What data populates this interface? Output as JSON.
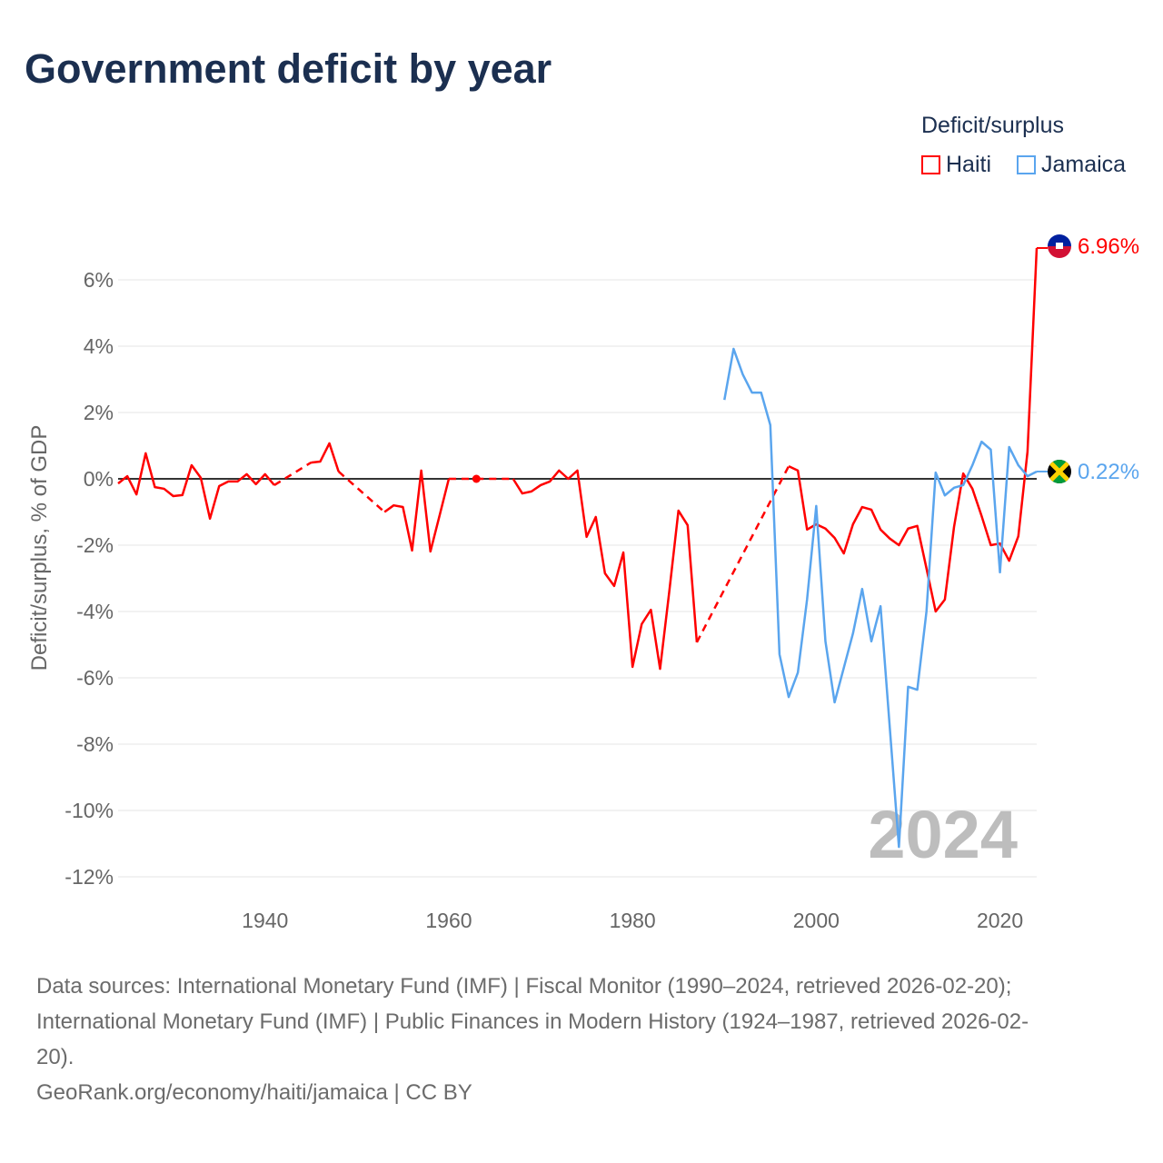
{
  "title": "Government deficit by year",
  "legend": {
    "title": "Deficit/surplus",
    "items": [
      {
        "name": "Haiti",
        "color": "#ff0000"
      },
      {
        "name": "Jamaica",
        "color": "#5aa5ee"
      }
    ]
  },
  "watermark_year": "2024",
  "footer": {
    "lines": [
      "Data sources: International Monetary Fund (IMF) | Fiscal Monitor (1990–2024, retrieved 2026-02-20);",
      "International Monetary Fund (IMF) | Public Finances in Modern History (1924–1987, retrieved 2026-02-",
      "20).",
      "GeoRank.org/economy/haiti/jamaica | CC BY"
    ]
  },
  "chart_data": {
    "type": "line",
    "title": "Government deficit by year",
    "xlabel": "",
    "ylabel": "Deficit/surplus, % of GDP",
    "xlim": [
      1924,
      2024
    ],
    "ylim": [
      -12.5,
      7
    ],
    "x_ticks": [
      1940,
      1960,
      1980,
      2000,
      2020
    ],
    "y_ticks": [
      6,
      4,
      2,
      0,
      -2,
      -4,
      -6,
      -8,
      -10,
      -12
    ],
    "y_tick_labels": [
      "6%",
      "4%",
      "2%",
      "0%",
      "-2%",
      "-4%",
      "-6%",
      "-8%",
      "-10%",
      "-12%"
    ],
    "grid": true,
    "legend_position": "top-right",
    "series": [
      {
        "name": "Haiti",
        "color": "#ff0000",
        "end_label": "6.96%",
        "points": [
          [
            1924,
            -0.14
          ],
          [
            1925,
            0.08
          ],
          [
            1926,
            -0.47
          ],
          [
            1927,
            0.77
          ],
          [
            1928,
            -0.25
          ],
          [
            1929,
            -0.3
          ],
          [
            1930,
            -0.52
          ],
          [
            1931,
            -0.49
          ],
          [
            1932,
            0.41
          ],
          [
            1933,
            0.03
          ],
          [
            1934,
            -1.2
          ],
          [
            1935,
            -0.22
          ],
          [
            1936,
            -0.08
          ],
          [
            1937,
            -0.08
          ],
          [
            1938,
            0.14
          ],
          [
            1939,
            -0.16
          ],
          [
            1940,
            0.14
          ],
          [
            1941,
            -0.19
          ],
          [
            1945,
            0.49
          ],
          [
            1946,
            0.52
          ],
          [
            1947,
            1.07
          ],
          [
            1948,
            0.22
          ],
          [
            1953,
            -1.0
          ],
          [
            1954,
            -0.8
          ],
          [
            1955,
            -0.85
          ],
          [
            1956,
            -2.16
          ],
          [
            1957,
            0.25
          ],
          [
            1958,
            -2.19
          ],
          [
            1959,
            -1.1
          ],
          [
            1960,
            0.0
          ],
          [
            1963,
            0.0
          ],
          [
            1967,
            0.0
          ],
          [
            1968,
            -0.44
          ],
          [
            1969,
            -0.38
          ],
          [
            1970,
            -0.19
          ],
          [
            1971,
            -0.08
          ],
          [
            1972,
            0.25
          ],
          [
            1973,
            0.0
          ],
          [
            1974,
            0.25
          ],
          [
            1975,
            -1.75
          ],
          [
            1976,
            -1.15
          ],
          [
            1977,
            -2.85
          ],
          [
            1978,
            -3.23
          ],
          [
            1979,
            -2.22
          ],
          [
            1980,
            -5.67
          ],
          [
            1981,
            -4.38
          ],
          [
            1982,
            -3.95
          ],
          [
            1983,
            -5.73
          ],
          [
            1984,
            -3.4
          ],
          [
            1985,
            -0.96
          ],
          [
            1986,
            -1.4
          ],
          [
            1987,
            -4.93
          ],
          [
            1997,
            0.38
          ],
          [
            1998,
            0.25
          ],
          [
            1999,
            -1.53
          ],
          [
            2000,
            -1.37
          ],
          [
            2001,
            -1.5
          ],
          [
            2002,
            -1.78
          ],
          [
            2003,
            -2.25
          ],
          [
            2004,
            -1.37
          ],
          [
            2005,
            -0.85
          ],
          [
            2006,
            -0.93
          ],
          [
            2007,
            -1.53
          ],
          [
            2008,
            -1.8
          ],
          [
            2009,
            -2.0
          ],
          [
            2010,
            -1.5
          ],
          [
            2011,
            -1.42
          ],
          [
            2012,
            -2.7
          ],
          [
            2013,
            -4.0
          ],
          [
            2014,
            -3.64
          ],
          [
            2015,
            -1.45
          ],
          [
            2016,
            0.16
          ],
          [
            2017,
            -0.3
          ],
          [
            2018,
            -1.12
          ],
          [
            2019,
            -2.0
          ],
          [
            2020,
            -1.95
          ],
          [
            2021,
            -2.47
          ],
          [
            2022,
            -1.73
          ],
          [
            2023,
            0.82
          ],
          [
            2024,
            6.96
          ]
        ]
      },
      {
        "name": "Jamaica",
        "color": "#5aa5ee",
        "end_label": "0.22%",
        "points": [
          [
            1990,
            2.38
          ],
          [
            1991,
            3.92
          ],
          [
            1992,
            3.15
          ],
          [
            1993,
            2.6
          ],
          [
            1994,
            2.6
          ],
          [
            1995,
            1.62
          ],
          [
            1996,
            -5.29
          ],
          [
            1997,
            -6.58
          ],
          [
            1998,
            -5.84
          ],
          [
            1999,
            -3.64
          ],
          [
            2000,
            -0.82
          ],
          [
            2001,
            -4.9
          ],
          [
            2002,
            -6.74
          ],
          [
            2003,
            -5.7
          ],
          [
            2004,
            -4.66
          ],
          [
            2005,
            -3.32
          ],
          [
            2006,
            -4.9
          ],
          [
            2007,
            -3.84
          ],
          [
            2008,
            -7.48
          ],
          [
            2009,
            -11.1
          ],
          [
            2010,
            -6.27
          ],
          [
            2011,
            -6.36
          ],
          [
            2012,
            -4.0
          ],
          [
            2013,
            0.19
          ],
          [
            2014,
            -0.5
          ],
          [
            2015,
            -0.27
          ],
          [
            2016,
            -0.19
          ],
          [
            2017,
            0.41
          ],
          [
            2018,
            1.12
          ],
          [
            2019,
            0.88
          ],
          [
            2020,
            -2.82
          ],
          [
            2021,
            0.96
          ],
          [
            2022,
            0.41
          ],
          [
            2023,
            0.08
          ],
          [
            2024,
            0.22
          ]
        ]
      }
    ]
  }
}
